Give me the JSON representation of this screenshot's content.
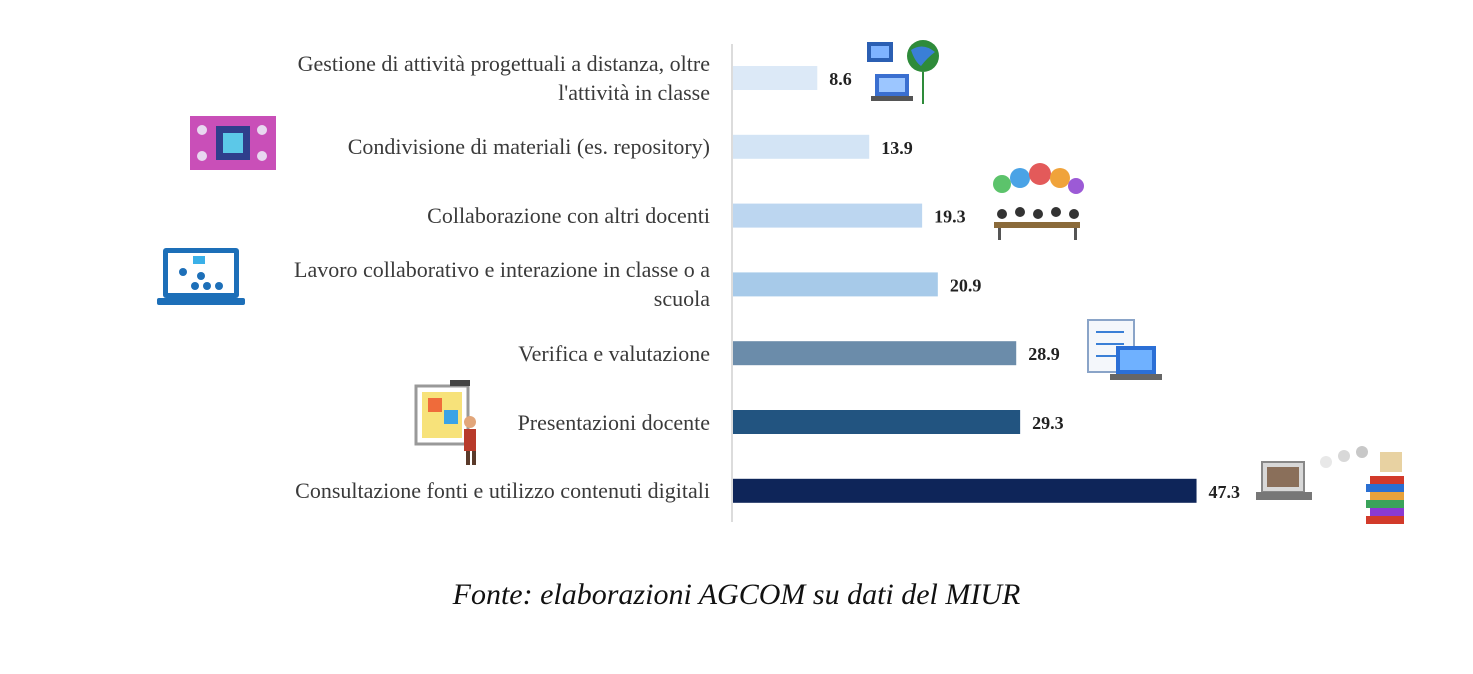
{
  "chart_data": {
    "type": "bar",
    "orientation": "horizontal",
    "categories": [
      "Gestione di attività progettuali a distanza, oltre l'attività in classe",
      "Condivisione di materiali (es. repository)",
      "Collaborazione con altri docenti",
      "Lavoro collaborativo e interazione in classe o a scuola",
      "Verifica e valutazione",
      "Presentazioni docente",
      "Consultazione fonti e utilizzo contenuti digitali"
    ],
    "category_lines": [
      [
        "Gestione di attività progettuali a distanza, oltre",
        "l'attività in classe"
      ],
      [
        "Condivisione di materiali (es. repository)"
      ],
      [
        "Collaborazione con altri docenti"
      ],
      [
        "Lavoro collaborativo e interazione in classe o a",
        "scuola"
      ],
      [
        "Verifica e valutazione"
      ],
      [
        "Presentazioni docente"
      ],
      [
        "Consultazione fonti e utilizzo contenuti digitali"
      ]
    ],
    "values": [
      8.6,
      13.9,
      19.3,
      20.9,
      28.9,
      29.3,
      47.3
    ],
    "value_labels": [
      "8.6",
      "13.9",
      "19.3",
      "20.9",
      "28.9",
      "29.3",
      "47.3"
    ],
    "bar_colors": [
      "#dce9f7",
      "#d3e4f5",
      "#bcd6f0",
      "#a7cae9",
      "#6b8caa",
      "#225480",
      "#0e2559"
    ],
    "xlim": [
      0,
      50
    ],
    "grid": false,
    "legend": "none",
    "icons": [
      "laptop-globe-icon",
      "circuit-board-icon",
      "people-cloud-icon",
      "classroom-monitor-icon",
      "checklist-laptop-icon",
      "whiteboard-teacher-icon",
      "laptop-books-icon"
    ]
  },
  "caption": "Fonte: elaborazioni AGCOM su dati del MIUR"
}
